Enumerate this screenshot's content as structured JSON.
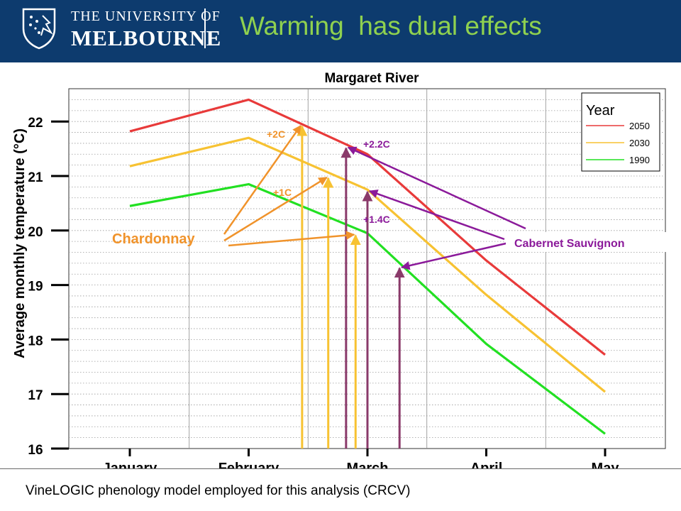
{
  "header": {
    "university_line1": "THE UNIVERSITY OF",
    "university_line2": "MELBOURNE",
    "slide_title": "Warming  has dual effects"
  },
  "colors": {
    "header_bg": "#0d3b6e",
    "title_green": "#8fd14f",
    "series_2050": "#e83a3a",
    "series_2030": "#f7c232",
    "series_1990": "#22e022",
    "chardonnay": "#f0932b",
    "cabernet": "#8b1a9a",
    "chardonnay_marker": "#f7c232",
    "cabernet_marker": "#8a3a6a"
  },
  "chart_data": {
    "type": "line",
    "title": "Margaret River",
    "ylabel": "Average monthly temperature   (°C)",
    "xlabel": "",
    "categories": [
      "January",
      "February",
      "March",
      "April",
      "May"
    ],
    "ylim": [
      16,
      22.6
    ],
    "yticks": [
      16,
      17,
      18,
      19,
      20,
      21,
      22
    ],
    "legend": {
      "title": "Year",
      "position": "top-right"
    },
    "grid": true,
    "series": [
      {
        "name": "2050",
        "color": "#e83a3a",
        "values": [
          21.82,
          22.4,
          21.4,
          19.45,
          17.72
        ]
      },
      {
        "name": "2030",
        "color": "#f7c232",
        "values": [
          21.18,
          21.7,
          20.75,
          18.82,
          17.04
        ]
      },
      {
        "name": "1990",
        "color": "#22e022",
        "values": [
          20.45,
          20.85,
          19.95,
          17.92,
          16.27
        ]
      }
    ],
    "phenology_markers": [
      {
        "group": "Chardonnay",
        "series": "2050",
        "month": 2.45,
        "temp": 21.95
      },
      {
        "group": "Chardonnay",
        "series": "2030",
        "month": 2.67,
        "temp": 21.0
      },
      {
        "group": "Chardonnay",
        "series": "1990",
        "month": 2.9,
        "temp": 19.95
      },
      {
        "group": "Cabernet Sauvignon",
        "series": "2050",
        "month": 2.82,
        "temp": 21.55
      },
      {
        "group": "Cabernet Sauvignon",
        "series": "2030",
        "month": 3.0,
        "temp": 20.75
      },
      {
        "group": "Cabernet Sauvignon",
        "series": "1990",
        "month": 3.27,
        "temp": 19.35
      }
    ],
    "annotations": {
      "chardonnay_label": "Chardonnay",
      "cabernet_label": "Cabernet Sauvignon",
      "chardonnay_2c": "+2C",
      "chardonnay_1c": "+1C",
      "cabernet_22c": "+2.2C",
      "cabernet_14c": "+1.4C"
    }
  },
  "footer": {
    "note": "VineLOGIC phenology model employed for this analysis (CRCV)"
  }
}
